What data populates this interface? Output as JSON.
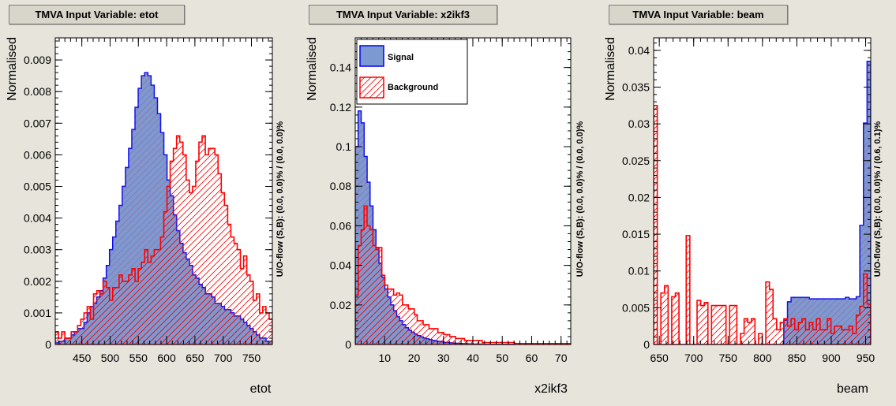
{
  "colors": {
    "background": "#e7e4db",
    "signal_fill": "#7d99d1",
    "signal_line": "#0000ee",
    "background_line": "#ff0000"
  },
  "legend": {
    "signal": "Signal",
    "background": "Background"
  },
  "chart_data": [
    {
      "type": "histogram",
      "title": "TMVA Input Variable: etot",
      "xlabel": "etot",
      "ylabel": "Normalised",
      "overflow_label": "U/O-flow (S,B): (0.0, 0.0)% / (0.0, 0.0)%",
      "xlim": [
        403,
        787
      ],
      "ylim": [
        0,
        0.0097
      ],
      "xticks": [
        450,
        500,
        550,
        600,
        650,
        700,
        750
      ],
      "yticks": [
        0,
        0.001,
        0.002,
        0.003,
        0.004,
        0.005,
        0.006,
        0.007,
        0.008,
        0.009
      ],
      "ytick_labels": [
        "0",
        "0.001",
        "0.002",
        "0.003",
        "0.004",
        "0.005",
        "0.006",
        "0.007",
        "0.008",
        "0.009"
      ],
      "bin_edges": [
        403,
        787
      ],
      "series": [
        {
          "name": "Signal",
          "values": [
            5e-05,
            0.0001,
            0.0001,
            0.0002,
            0.0002,
            0.0003,
            0.0004,
            0.0005,
            0.0005,
            0.0007,
            0.001,
            0.0012,
            0.0013,
            0.0015,
            0.0017,
            0.0021,
            0.0025,
            0.003,
            0.0034,
            0.0039,
            0.0044,
            0.005,
            0.0056,
            0.0062,
            0.0068,
            0.0075,
            0.0081,
            0.0085,
            0.0086,
            0.0085,
            0.0082,
            0.0078,
            0.0073,
            0.0067,
            0.006,
            0.0052,
            0.0047,
            0.0041,
            0.0036,
            0.0032,
            0.0029,
            0.0027,
            0.0025,
            0.0022,
            0.0021,
            0.0019,
            0.0018,
            0.0016,
            0.0016,
            0.0015,
            0.0013,
            0.0013,
            0.0012,
            0.0011,
            0.0011,
            0.001,
            0.0009,
            0.0009,
            0.0008,
            0.0007,
            0.0006,
            0.0005,
            0.0004,
            0.0003,
            0.0002,
            0.0002,
            0.0001,
            0.0001
          ]
        },
        {
          "name": "Background",
          "values": [
            0.0004,
            0.0002,
            0.0004,
            0.0002,
            0.0002,
            0.0004,
            0.0004,
            0.0006,
            0.0008,
            0.001,
            0.0012,
            0.0008,
            0.0016,
            0.0017,
            0.0016,
            0.002,
            0.0018,
            0.0014,
            0.0018,
            0.0018,
            0.0022,
            0.002,
            0.002,
            0.0022,
            0.0024,
            0.002,
            0.0024,
            0.0026,
            0.003,
            0.0026,
            0.0028,
            0.003,
            0.003,
            0.0034,
            0.0042,
            0.005,
            0.0058,
            0.0062,
            0.0066,
            0.0064,
            0.006,
            0.0052,
            0.0048,
            0.005,
            0.0058,
            0.0064,
            0.0066,
            0.006,
            0.0062,
            0.0062,
            0.006,
            0.0054,
            0.0048,
            0.0044,
            0.0038,
            0.0034,
            0.0032,
            0.003,
            0.0024,
            0.0028,
            0.0022,
            0.002,
            0.0014,
            0.0016,
            0.001,
            0.0012,
            0.001,
            0.0008
          ]
        }
      ]
    },
    {
      "type": "histogram",
      "title": "TMVA Input Variable: x2ikf3",
      "xlabel": "x2ikf3",
      "ylabel": "Normalised",
      "overflow_label": "U/O-flow (S,B): (0.0, 0.0)% / (0.0, 0.0)%",
      "xlim": [
        0,
        73.3
      ],
      "ylim": [
        0,
        0.155
      ],
      "xticks": [
        10,
        20,
        30,
        40,
        50,
        60,
        70
      ],
      "yticks": [
        0,
        0.02,
        0.04,
        0.06,
        0.08,
        0.1,
        0.12,
        0.14
      ],
      "ytick_labels": [
        "0",
        "0.02",
        "0.04",
        "0.06",
        "0.08",
        "0.1",
        "0.12",
        "0.14"
      ],
      "bin_edges": [
        0,
        73.3
      ],
      "series": [
        {
          "name": "Signal",
          "values": [
            0.1,
            0.118,
            0.112,
            0.095,
            0.082,
            0.07,
            0.058,
            0.049,
            0.041,
            0.034,
            0.028,
            0.024,
            0.02,
            0.017,
            0.014,
            0.012,
            0.01,
            0.0085,
            0.0072,
            0.0062,
            0.0053,
            0.0045,
            0.0038,
            0.0033,
            0.0028,
            0.0024,
            0.002,
            0.0017,
            0.0015,
            0.0013,
            0.0011,
            0.001,
            0.0008,
            0.0007,
            0.0006,
            0.0005,
            0.0004,
            0.0004,
            0.0003,
            0.0003,
            0.0002,
            0.0002,
            0.0002,
            0.0001,
            0.0001,
            0.0001,
            0.0001,
            0.0001,
            0.0001,
            0.0001,
            0.0001,
            0.0001,
            0.0001,
            0.0001,
            0.0001,
            0.0001,
            0.0001,
            0.0001,
            0.0001,
            0.0001,
            0.0001,
            0.0001,
            0.0001,
            0.0001,
            0.0001,
            0.0001,
            0.0001,
            0.0001,
            0.0001,
            0.0001,
            0.0001,
            0.0001,
            0.0001
          ]
        },
        {
          "name": "Background",
          "values": [
            0.025,
            0.05,
            0.058,
            0.07,
            0.06,
            0.058,
            0.05,
            0.048,
            0.049,
            0.035,
            0.03,
            0.028,
            0.028,
            0.025,
            0.026,
            0.025,
            0.02,
            0.02,
            0.018,
            0.018,
            0.015,
            0.012,
            0.012,
            0.01,
            0.01,
            0.008,
            0.008,
            0.008,
            0.006,
            0.006,
            0.005,
            0.005,
            0.004,
            0.004,
            0.003,
            0.003,
            0.003,
            0.002,
            0.002,
            0.002,
            0.002,
            0.002,
            0.002,
            0.001,
            0.001,
            0.001,
            0.001,
            0.001,
            0.001,
            0.001,
            0.001,
            0.001,
            0.001,
            0.001,
            0.0005,
            0.0005,
            0.0005,
            0.0005,
            0.0005,
            0.0005,
            0.0005,
            0.0005,
            0.0005,
            0.0005,
            0.0005,
            0.0005,
            0.0005,
            0.0005,
            0.0005,
            0.0005,
            0.0005,
            0.0005,
            0.0005
          ]
        }
      ]
    },
    {
      "type": "histogram",
      "title": "TMVA Input Variable: beam",
      "xlabel": "beam",
      "ylabel": "Normalised",
      "overflow_label": "U/O-flow (S,B): (0.0, 0.0)% / (0.6, 0.1)%",
      "xlim": [
        641.8,
        957.4
      ],
      "ylim": [
        0,
        0.0417
      ],
      "xticks": [
        650,
        700,
        750,
        800,
        850,
        900,
        950
      ],
      "yticks": [
        0,
        0.005,
        0.01,
        0.015,
        0.02,
        0.025,
        0.03,
        0.035,
        0.04
      ],
      "ytick_labels": [
        "0",
        "0.005",
        "0.01",
        "0.015",
        "0.02",
        "0.025",
        "0.03",
        "0.035",
        "0.04"
      ],
      "bin_edges": [
        641.8,
        957.4
      ],
      "series": [
        {
          "name": "Signal",
          "values": [
            0,
            0,
            0,
            0,
            0,
            0,
            0,
            0,
            0,
            0,
            0,
            0,
            0,
            0,
            0,
            0,
            0,
            0,
            0,
            0,
            0,
            0,
            0,
            0,
            0,
            0,
            0,
            0,
            0,
            0,
            0,
            0,
            0,
            0,
            0,
            0,
            0.0033,
            0.0058,
            0.0064,
            0.0064,
            0.0064,
            0.0064,
            0.0064,
            0.0062,
            0.0062,
            0.0062,
            0.0062,
            0.0062,
            0.0062,
            0.0062,
            0.0062,
            0.0062,
            0.0062,
            0.0064,
            0.0062,
            0.0062,
            0.0065,
            0.0162,
            0.0301,
            0.0385
          ]
        },
        {
          "name": "Background",
          "values": [
            0.0325,
            0,
            0.007,
            0.008,
            0,
            0.0065,
            0.007,
            0,
            0,
            0.0148,
            0,
            0,
            0.006,
            0.0053,
            0.0057,
            0,
            0.0053,
            0.0053,
            0.0053,
            0.0053,
            0,
            0.0053,
            0.0053,
            0,
            0.0015,
            0.0035,
            0.003,
            0.0035,
            0,
            0.0015,
            0,
            0.0085,
            0.0075,
            0.0035,
            0.002,
            0.003,
            0.0035,
            0.0025,
            0.0035,
            0.002,
            0.003,
            0.0035,
            0.002,
            0.003,
            0.002,
            0.0035,
            0.002,
            0.002,
            0.0035,
            0.0015,
            0.0025,
            0.0025,
            0.002,
            0.002,
            0.0025,
            0.0015,
            0.004,
            0.0052,
            0.0096,
            0.0055
          ]
        }
      ]
    }
  ]
}
